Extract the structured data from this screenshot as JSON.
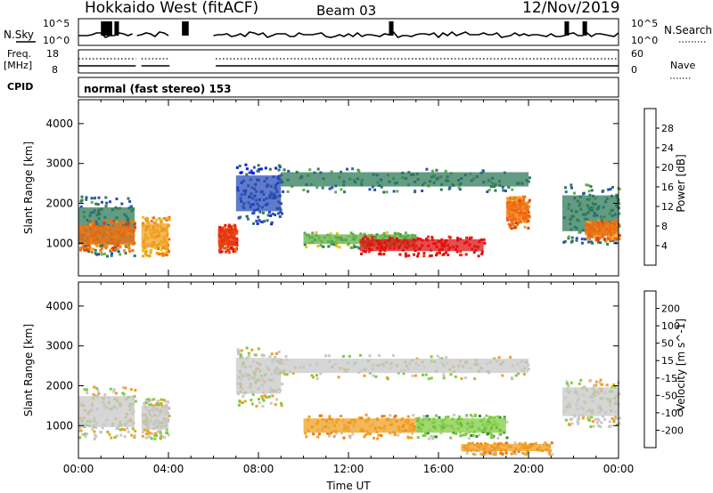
{
  "header": {
    "radar": "Hokkaido West (fitACF)",
    "beam": "Beam 03",
    "date": "12/Nov/2019"
  },
  "nsky": {
    "label": "N.Sky",
    "tick_top": "10^5",
    "tick_bottom": "10^0",
    "right_label": "N.Search",
    "right_tick_top": "10^5",
    "right_tick_bottom": "10^0"
  },
  "freq": {
    "label_line1": "Freq.",
    "label_line2": "[MHz]",
    "tick_top": "18",
    "tick_bottom": "8",
    "right_label": "Nave",
    "right_tick_top": "60",
    "right_tick_bottom": "0"
  },
  "cpid": {
    "label": "CPID",
    "value": "normal (fast stereo) 153"
  },
  "chart_data": [
    {
      "type": "heatmap",
      "ylabel": "Slant Range [km]",
      "xlabel": "",
      "ylim": [
        180,
        4600
      ],
      "yticks": [
        "1000",
        "2000",
        "3000",
        "4000"
      ],
      "colorbar": {
        "label": "Power [dB]",
        "ticks": [
          "4",
          "8",
          "12",
          "16",
          "20",
          "24",
          "28"
        ],
        "colors": [
          "#0a1de0",
          "#2b4fb8",
          "#2f7a5a",
          "#5fb04a",
          "#e8c21c",
          "#f0a020",
          "#f07010",
          "#e63a10",
          "#e01010"
        ]
      },
      "bands": [
        {
          "t": [
            0.0,
            2.5
          ],
          "r": [
            700,
            2200
          ],
          "c": "#2f7a5a"
        },
        {
          "t": [
            0.0,
            2.5
          ],
          "r": [
            800,
            1600
          ],
          "c": "#f07010"
        },
        {
          "t": [
            2.8,
            4.0
          ],
          "r": [
            700,
            1700
          ],
          "c": "#f0a020"
        },
        {
          "t": [
            6.2,
            7.0
          ],
          "r": [
            800,
            1500
          ],
          "c": "#e63a10"
        },
        {
          "t": [
            7.0,
            9.0
          ],
          "r": [
            1500,
            3000
          ],
          "c": "#2b4fb8"
        },
        {
          "t": [
            9.0,
            20.0
          ],
          "r": [
            2300,
            2900
          ],
          "c": "#2f7a5a"
        },
        {
          "t": [
            10.0,
            15.0
          ],
          "r": [
            900,
            1300
          ],
          "c": "#5fb04a"
        },
        {
          "t": [
            12.5,
            18.0
          ],
          "r": [
            700,
            1200
          ],
          "c": "#e01010"
        },
        {
          "t": [
            19.0,
            20.0
          ],
          "r": [
            1400,
            2200
          ],
          "c": "#f07010"
        },
        {
          "t": [
            21.5,
            24.0
          ],
          "r": [
            1000,
            2500
          ],
          "c": "#2f7a5a"
        },
        {
          "t": [
            22.5,
            24.0
          ],
          "r": [
            1100,
            1600
          ],
          "c": "#f07010"
        }
      ]
    },
    {
      "type": "heatmap",
      "ylabel": "Slant Range [km]",
      "xlabel": "Time UT",
      "ylim": [
        180,
        4600
      ],
      "yticks": [
        "1000",
        "2000",
        "3000",
        "4000"
      ],
      "xticks": [
        "00:00",
        "04:00",
        "08:00",
        "12:00",
        "16:00",
        "20:00",
        "00:00"
      ],
      "colorbar": {
        "label": "Velocity [m s^-1]",
        "ticks": [
          "200",
          "100",
          "50",
          "15",
          "-15",
          "-50",
          "-100",
          "-200"
        ],
        "colors": [
          "#2d3fb8",
          "#2f7a7a",
          "#2e8b3a",
          "#7fcc3f",
          "#c8c8c8",
          "#f0a020",
          "#f07010",
          "#e63a10",
          "#e01010"
        ]
      },
      "bands": [
        {
          "t": [
            0.0,
            2.5
          ],
          "r": [
            700,
            2000
          ],
          "c": "#c8c8c8"
        },
        {
          "t": [
            2.8,
            4.0
          ],
          "r": [
            700,
            1700
          ],
          "c": "#c8c8c8"
        },
        {
          "t": [
            7.0,
            9.0
          ],
          "r": [
            1500,
            3000
          ],
          "c": "#c8c8c8"
        },
        {
          "t": [
            9.0,
            20.0
          ],
          "r": [
            2200,
            2800
          ],
          "c": "#c8c8c8"
        },
        {
          "t": [
            10.0,
            15.0
          ],
          "r": [
            700,
            1300
          ],
          "c": "#f0a020"
        },
        {
          "t": [
            15.0,
            19.0
          ],
          "r": [
            700,
            1300
          ],
          "c": "#7fcc3f"
        },
        {
          "t": [
            17.0,
            21.0
          ],
          "r": [
            300,
            600
          ],
          "c": "#f0a020"
        },
        {
          "t": [
            21.5,
            24.0
          ],
          "r": [
            1000,
            2200
          ],
          "c": "#c8c8c8"
        }
      ]
    }
  ]
}
